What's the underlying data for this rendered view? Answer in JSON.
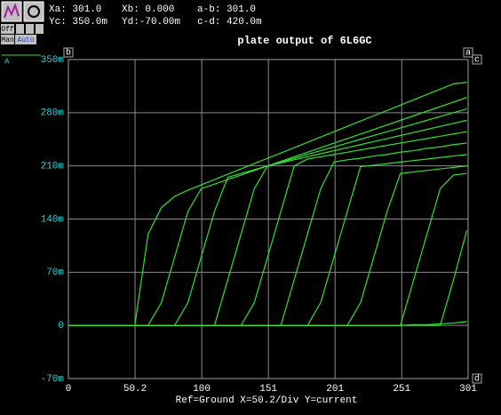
{
  "toolbar": {
    "readouts": [
      "Xa: 301.0",
      "Xb: 0.000",
      "a-b: 301.0",
      "Yc: 350.0m",
      "Yd:-70.00m",
      "c-d: 420.0m"
    ],
    "buttons": [
      "Off",
      "Man",
      "Auto"
    ]
  },
  "cursors": [
    "a",
    "b",
    "c",
    "d"
  ],
  "chart_data": {
    "type": "line",
    "title": "plate output of 6L6GC",
    "x_label": "Ref=Ground  X=50.2/Div Y=current",
    "trace_label": "A",
    "color": "#33e033",
    "grid": true,
    "xlim": [
      0,
      301
    ],
    "ylim": [
      -0.07,
      0.35
    ],
    "xticks": [
      0,
      50.2,
      {
        "value": 100.4,
        "label": "100"
      },
      {
        "value": 150.6,
        "label": "151"
      },
      {
        "value": 200.8,
        "label": "201"
      },
      251,
      301
    ],
    "yticks": [
      {
        "value": -0.07,
        "label": "-70m"
      },
      0,
      {
        "value": 0.07,
        "label": "70m"
      },
      {
        "value": 0.14,
        "label": "140m"
      },
      {
        "value": 0.21,
        "label": "210m"
      },
      {
        "value": 0.28,
        "label": "280m"
      },
      {
        "value": 0.35,
        "label": "350m"
      }
    ],
    "x": [
      0,
      10,
      20,
      30,
      40,
      50,
      60,
      70,
      80,
      90,
      100,
      110,
      120,
      130,
      140,
      150,
      160,
      170,
      180,
      190,
      200,
      210,
      220,
      230,
      240,
      250,
      260,
      270,
      280,
      290,
      300
    ],
    "series": [
      {
        "values": [
          0,
          0,
          0,
          0,
          0,
          0,
          0.12,
          0.155,
          0.17,
          0.178,
          0.185,
          0.192,
          0.199,
          0.206,
          0.213,
          0.22,
          0.227,
          0.234,
          0.241,
          0.248,
          0.255,
          0.262,
          0.269,
          0.276,
          0.283,
          0.29,
          0.297,
          0.304,
          0.311,
          0.318,
          0.32
        ]
      },
      {
        "values": [
          0,
          0,
          0,
          0,
          0,
          0,
          0,
          0.03,
          0.09,
          0.15,
          0.18,
          0.186,
          0.192,
          0.198,
          0.204,
          0.21,
          0.216,
          0.222,
          0.228,
          0.234,
          0.24,
          0.246,
          0.252,
          0.258,
          0.264,
          0.27,
          0.276,
          0.282,
          0.288,
          0.294,
          0.3
        ]
      },
      {
        "values": [
          0,
          0,
          0,
          0,
          0,
          0,
          0,
          0,
          0,
          0.03,
          0.09,
          0.15,
          0.195,
          0.2,
          0.205,
          0.21,
          0.215,
          0.22,
          0.225,
          0.23,
          0.235,
          0.24,
          0.245,
          0.25,
          0.255,
          0.26,
          0.265,
          0.27,
          0.275,
          0.28,
          0.285
        ]
      },
      {
        "values": [
          0,
          0,
          0,
          0,
          0,
          0,
          0,
          0,
          0,
          0,
          0,
          0,
          0.06,
          0.12,
          0.18,
          0.21,
          0.214,
          0.218,
          0.222,
          0.226,
          0.23,
          0.234,
          0.238,
          0.242,
          0.246,
          0.25,
          0.254,
          0.258,
          0.262,
          0.266,
          0.27
        ]
      },
      {
        "values": [
          0,
          0,
          0,
          0,
          0,
          0,
          0,
          0,
          0,
          0,
          0,
          0,
          0,
          0,
          0.03,
          0.09,
          0.15,
          0.21,
          0.219,
          0.222,
          0.225,
          0.228,
          0.231,
          0.234,
          0.237,
          0.24,
          0.243,
          0.246,
          0.249,
          0.252,
          0.255
        ]
      },
      {
        "values": [
          0,
          0,
          0,
          0,
          0,
          0,
          0,
          0,
          0,
          0,
          0,
          0,
          0,
          0,
          0,
          0,
          0,
          0.06,
          0.12,
          0.18,
          0.215,
          0.218,
          0.22,
          0.223,
          0.225,
          0.228,
          0.23,
          0.233,
          0.235,
          0.238,
          0.24
        ]
      },
      {
        "values": [
          0,
          0,
          0,
          0,
          0,
          0,
          0,
          0,
          0,
          0,
          0,
          0,
          0,
          0,
          0,
          0,
          0,
          0,
          0,
          0.03,
          0.09,
          0.15,
          0.209,
          0.211,
          0.213,
          0.215,
          0.217,
          0.219,
          0.221,
          0.223,
          0.225
        ]
      },
      {
        "values": [
          0,
          0,
          0,
          0,
          0,
          0,
          0,
          0,
          0,
          0,
          0,
          0,
          0,
          0,
          0,
          0,
          0,
          0,
          0,
          0,
          0,
          0,
          0.03,
          0.09,
          0.15,
          0.2,
          0.202,
          0.204,
          0.206,
          0.208,
          0.21
        ]
      },
      {
        "values": [
          0,
          0,
          0,
          0,
          0,
          0,
          0,
          0,
          0,
          0,
          0,
          0,
          0,
          0,
          0,
          0,
          0,
          0,
          0,
          0,
          0,
          0,
          0,
          0,
          0,
          0,
          0.06,
          0.12,
          0.18,
          0.198,
          0.2
        ]
      },
      {
        "values": [
          0,
          0,
          0,
          0,
          0,
          0,
          0,
          0,
          0,
          0,
          0,
          0,
          0,
          0,
          0,
          0,
          0,
          0,
          0,
          0,
          0,
          0,
          0,
          0,
          0,
          0,
          0,
          0,
          0,
          0.06,
          0.125
        ]
      },
      {
        "values": [
          0,
          0,
          0,
          0,
          0,
          0,
          0,
          0,
          0,
          0,
          0,
          0,
          0,
          0,
          0,
          0,
          0,
          0,
          0,
          0,
          0,
          0,
          0,
          0,
          0,
          0,
          0.001,
          0.001,
          0.002,
          0.003,
          0.005
        ]
      }
    ]
  }
}
